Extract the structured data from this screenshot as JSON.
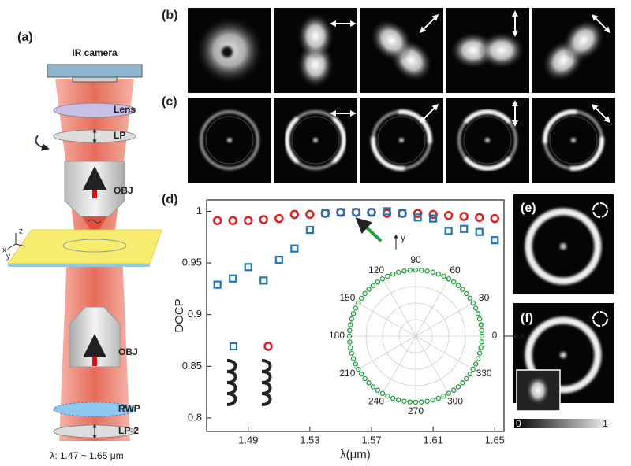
{
  "figure": {
    "panel_labels": [
      "(a)",
      "(b)",
      "(c)",
      "(d)",
      "(e)",
      "(f)"
    ],
    "schematic": {
      "camera": "IR camera",
      "lens": "Lens",
      "lp": "LP",
      "obj_top": "OBJ",
      "obj_bottom": "OBJ",
      "rwp": "RWP",
      "lp2": "LP-2",
      "wavelength": "λ: 1.47 ~ 1.65 μm",
      "axis_z": "z",
      "axis_x": "x",
      "axis_y": "y"
    },
    "colorbar": {
      "min_label": "0",
      "max_label": "1"
    }
  },
  "chart_data": {
    "type": "scatter",
    "ylabel": "DOCP",
    "xlabel": "λ(μm)",
    "x": [
      1.47,
      1.48,
      1.49,
      1.5,
      1.51,
      1.52,
      1.53,
      1.54,
      1.55,
      1.56,
      1.57,
      1.58,
      1.59,
      1.6,
      1.61,
      1.62,
      1.63,
      1.64,
      1.65
    ],
    "series": [
      {
        "color": "#e02020",
        "marker": "circle",
        "values": [
          0.991,
          0.991,
          0.991,
          0.992,
          0.993,
          0.997,
          0.997,
          0.998,
          0.999,
          0.999,
          0.999,
          0.998,
          0.998,
          0.998,
          0.997,
          0.996,
          0.995,
          0.994,
          0.993
        ]
      },
      {
        "color": "#1f77b4",
        "marker": "square",
        "values": [
          0.929,
          0.935,
          0.946,
          0.933,
          0.953,
          0.964,
          0.982,
          0.998,
          0.999,
          0.999,
          0.999,
          1.0,
          0.998,
          0.994,
          0.993,
          0.981,
          0.983,
          0.98,
          0.972
        ]
      }
    ],
    "xlim": [
      1.463,
      1.656
    ],
    "ylim": [
      0.787,
      1.011
    ],
    "xticks": [
      1.49,
      1.53,
      1.57,
      1.61,
      1.65
    ],
    "yticks": [
      0.8,
      0.85,
      0.9,
      0.95,
      1
    ],
    "inset": {
      "type": "polar",
      "angle_ticks": [
        0,
        30,
        60,
        90,
        120,
        150,
        180,
        210,
        240,
        270,
        300,
        330
      ],
      "x_label": "x",
      "y_label": "y",
      "color": "#22a040"
    }
  }
}
